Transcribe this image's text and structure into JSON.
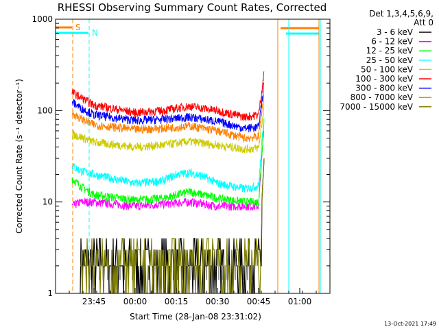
{
  "chart_data": {
    "type": "line",
    "title": "RHESSI Observing Summary Count Rates, Corrected",
    "xlabel": "Start Time (28-Jan-08 23:31:02)",
    "ylabel": "Corrected Count Rate (s⁻¹ detector⁻¹)",
    "y_scale": "log",
    "ylim": [
      1,
      1000
    ],
    "xlim": [
      "23:31",
      "01:11"
    ],
    "x_ticks": [
      "23:45",
      "00:00",
      "00:15",
      "00:30",
      "00:45",
      "01:00"
    ],
    "y_ticks": [
      "1",
      "10",
      "100",
      "1000"
    ],
    "legend_header": [
      "Det 1,3,4,5,6,9,",
      "Att 0"
    ],
    "legend_position": "right",
    "timestamp": "13-Oct-2021 17:49",
    "flags": [
      {
        "label": "S",
        "start": "23:31",
        "end": "23:37",
        "color": "#ff8000"
      },
      {
        "label": "N",
        "start": "23:31",
        "end": "23:43",
        "color": "#00ffff"
      }
    ],
    "series": [
      {
        "name": "3 - 6 keV",
        "color": "#000000",
        "points": [
          [
            "23:40",
            3.5
          ],
          [
            "23:45",
            2
          ],
          [
            "23:50",
            2
          ],
          [
            "00:00",
            2
          ],
          [
            "00:10",
            2
          ],
          [
            "00:15",
            2.5
          ],
          [
            "00:20",
            2.5
          ],
          [
            "00:25",
            2
          ],
          [
            "00:30",
            2
          ],
          [
            "00:40",
            2
          ],
          [
            "00:45",
            2
          ],
          [
            "00:47",
            30
          ]
        ]
      },
      {
        "name": "6 - 12 keV",
        "color": "#ff00ff",
        "points": [
          [
            "23:37",
            9
          ],
          [
            "23:40",
            10
          ],
          [
            "23:45",
            10
          ],
          [
            "00:00",
            9
          ],
          [
            "00:10",
            9.5
          ],
          [
            "00:20",
            10
          ],
          [
            "00:30",
            9
          ],
          [
            "00:40",
            9
          ],
          [
            "00:45",
            9
          ],
          [
            "00:47",
            70
          ]
        ]
      },
      {
        "name": "12 - 25 keV",
        "color": "#00ff00",
        "points": [
          [
            "23:37",
            18
          ],
          [
            "23:40",
            15
          ],
          [
            "23:45",
            12
          ],
          [
            "00:00",
            10.5
          ],
          [
            "00:10",
            11
          ],
          [
            "00:20",
            13
          ],
          [
            "00:30",
            11
          ],
          [
            "00:40",
            10
          ],
          [
            "00:45",
            10
          ],
          [
            "00:47",
            80
          ]
        ]
      },
      {
        "name": "25 - 50 keV",
        "color": "#00ffff",
        "points": [
          [
            "23:37",
            25
          ],
          [
            "23:40",
            22
          ],
          [
            "23:45",
            20
          ],
          [
            "00:00",
            16
          ],
          [
            "00:10",
            17
          ],
          [
            "00:15",
            20
          ],
          [
            "00:20",
            21
          ],
          [
            "00:25",
            19
          ],
          [
            "00:30",
            16
          ],
          [
            "00:40",
            14
          ],
          [
            "00:45",
            15
          ],
          [
            "00:47",
            90
          ]
        ]
      },
      {
        "name": "50 - 100 keV",
        "color": "#cccc00",
        "points": [
          [
            "23:37",
            55
          ],
          [
            "23:40",
            52
          ],
          [
            "23:45",
            45
          ],
          [
            "00:00",
            40
          ],
          [
            "00:10",
            42
          ],
          [
            "00:20",
            46
          ],
          [
            "00:30",
            42
          ],
          [
            "00:40",
            38
          ],
          [
            "00:45",
            39
          ],
          [
            "00:47",
            110
          ]
        ]
      },
      {
        "name": "100 - 300 keV",
        "color": "#ff0000",
        "points": [
          [
            "23:37",
            160
          ],
          [
            "23:40",
            140
          ],
          [
            "23:45",
            115
          ],
          [
            "00:00",
            95
          ],
          [
            "00:10",
            100
          ],
          [
            "00:20",
            112
          ],
          [
            "00:30",
            100
          ],
          [
            "00:40",
            85
          ],
          [
            "00:45",
            90
          ],
          [
            "00:47",
            260
          ]
        ]
      },
      {
        "name": "300 - 800 keV",
        "color": "#0000ff",
        "points": [
          [
            "23:37",
            125
          ],
          [
            "23:40",
            108
          ],
          [
            "23:45",
            90
          ],
          [
            "00:00",
            78
          ],
          [
            "00:10",
            80
          ],
          [
            "00:20",
            85
          ],
          [
            "00:30",
            76
          ],
          [
            "00:40",
            64
          ],
          [
            "00:45",
            66
          ],
          [
            "00:47",
            200
          ]
        ]
      },
      {
        "name": "800 - 7000 keV",
        "color": "#ff8000",
        "points": [
          [
            "23:37",
            95
          ],
          [
            "23:40",
            82
          ],
          [
            "23:45",
            70
          ],
          [
            "00:00",
            62
          ],
          [
            "00:10",
            64
          ],
          [
            "00:20",
            68
          ],
          [
            "00:30",
            60
          ],
          [
            "00:40",
            50
          ],
          [
            "00:45",
            52
          ],
          [
            "00:47",
            150
          ]
        ]
      },
      {
        "name": "7000 - 15000 keV",
        "color": "#808000",
        "points": [
          [
            "23:40",
            3.5
          ],
          [
            "23:45",
            2
          ],
          [
            "23:50",
            2
          ],
          [
            "00:00",
            2
          ],
          [
            "00:10",
            2.5
          ],
          [
            "00:15",
            3
          ],
          [
            "00:20",
            3
          ],
          [
            "00:25",
            2.5
          ],
          [
            "00:30",
            2
          ],
          [
            "00:40",
            2
          ],
          [
            "00:45",
            2
          ],
          [
            "00:47",
            30
          ]
        ]
      }
    ]
  }
}
